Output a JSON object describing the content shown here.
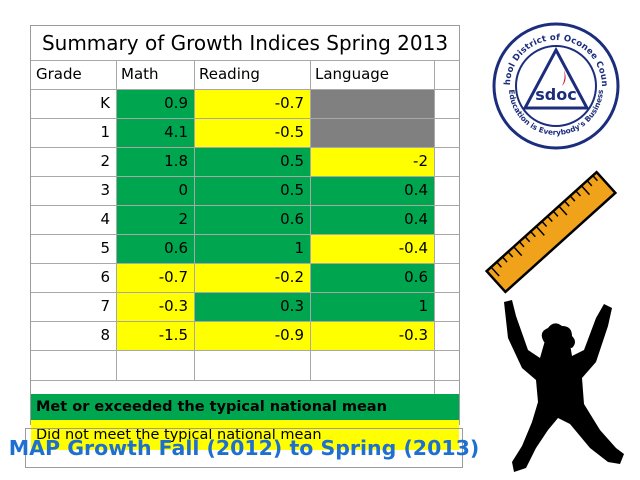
{
  "title": "Summary of Growth Indices Spring 2013",
  "headers": [
    "Grade",
    "Math",
    "Reading",
    "Language"
  ],
  "rows": [
    {
      "grade": "K",
      "math": "0.9",
      "reading": "-0.7",
      "language": ""
    },
    {
      "grade": "1",
      "math": "4.1",
      "reading": "-0.5",
      "language": ""
    },
    {
      "grade": "2",
      "math": "1.8",
      "reading": "0.5",
      "language": "-2"
    },
    {
      "grade": "3",
      "math": "0",
      "reading": "0.5",
      "language": "0.4"
    },
    {
      "grade": "4",
      "math": "2",
      "reading": "0.6",
      "language": "0.4"
    },
    {
      "grade": "5",
      "math": "0.6",
      "reading": "1",
      "language": "-0.4"
    },
    {
      "grade": "6",
      "math": "-0.7",
      "reading": "-0.2",
      "language": "0.6"
    },
    {
      "grade": "7",
      "math": "-0.3",
      "reading": "0.3",
      "language": "1"
    },
    {
      "grade": "8",
      "math": "-1.5",
      "reading": "-0.9",
      "language": "-0.3"
    }
  ],
  "cell_status": [
    [
      "met",
      "not",
      "na"
    ],
    [
      "met",
      "not",
      "na"
    ],
    [
      "met",
      "met",
      "not"
    ],
    [
      "met",
      "met",
      "met"
    ],
    [
      "met",
      "met",
      "met"
    ],
    [
      "met",
      "met",
      "not"
    ],
    [
      "not",
      "not",
      "met"
    ],
    [
      "not",
      "met",
      "met"
    ],
    [
      "not",
      "not",
      "not"
    ]
  ],
  "legend": {
    "met": "Met or exceeded the typical national mean",
    "not": "Did not meet the typical national mean"
  },
  "banner": "MAP Growth Fall (2012) to Spring (2013)",
  "logo": {
    "top_arc": "School District of Oconee County",
    "center": "sdoc",
    "bottom_arc": "Education is Everybody's Business"
  },
  "colors": {
    "met": "#00a64f",
    "not": "#ffff00",
    "na": "#808080",
    "banner_text": "#1f6fd1",
    "logo_blue": "#1b2d7c",
    "ruler": "#f0a21a",
    "logo_accent": "#c0272d"
  },
  "icons": [
    "sdoc-logo",
    "ruler-icon",
    "jumping-child-silhouette"
  ]
}
